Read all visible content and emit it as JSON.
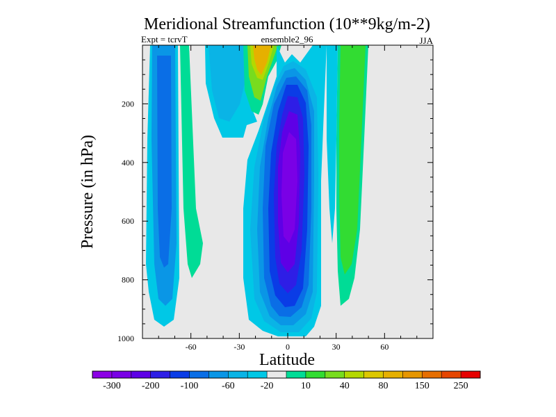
{
  "chart_data": {
    "type": "contour",
    "title": "Meridional Streamfunction (10**9kg/m-2)",
    "left_label": "Expt = tcrvT",
    "center_label": "ensemble2_96",
    "right_label": "JJA",
    "xlabel": "Latitude",
    "ylabel": "Pressure (in hPa)",
    "xlim": [
      -90,
      90
    ],
    "ylim": [
      1000,
      0
    ],
    "xticks": [
      -60,
      -30,
      0,
      30,
      60
    ],
    "yticks": [
      200,
      400,
      600,
      800,
      1000
    ],
    "colorbar": {
      "labels": [
        "-300",
        "-200",
        "-100",
        "-60",
        "-20",
        "10",
        "40",
        "80",
        "150",
        "250"
      ],
      "colors": [
        "#8c00e6",
        "#7a00e6",
        "#5e00e6",
        "#2e1ee6",
        "#0a3ce6",
        "#0a6ee6",
        "#0a96e6",
        "#0ab4e6",
        "#00c8e6",
        "#e8e8e8",
        "#00dc96",
        "#32dc32",
        "#78dc1e",
        "#b4d800",
        "#dcc800",
        "#e6b000",
        "#e69600",
        "#e66e00",
        "#e64600",
        "#e60000"
      ]
    }
  }
}
